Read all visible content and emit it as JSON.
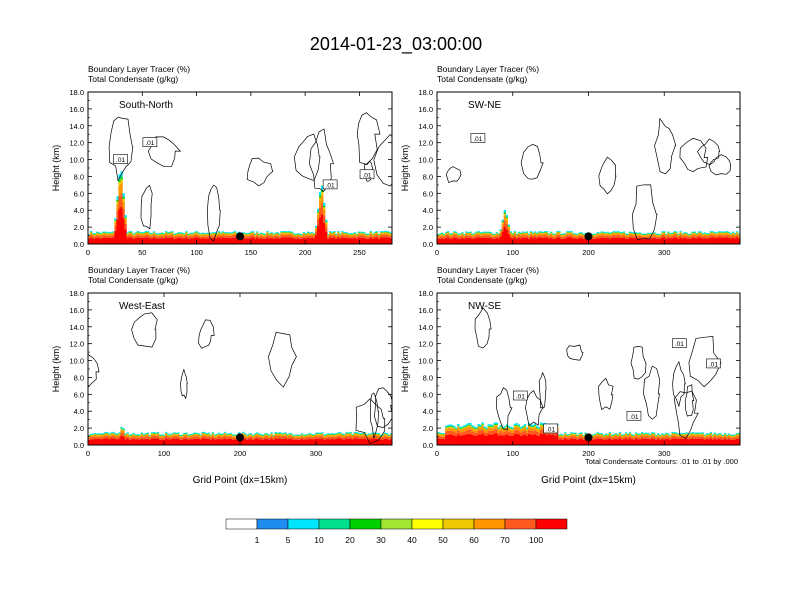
{
  "figure": {
    "title": "2014-01-23_03:00:00",
    "footnote": "Total Condensate Contours: .01 to .01 by .000"
  },
  "colorbar": {
    "labels": [
      "1",
      "5",
      "10",
      "20",
      "30",
      "40",
      "50",
      "60",
      "70",
      "100"
    ],
    "colors": [
      "#ffffff",
      "#1e8cf0",
      "#00e6ff",
      "#00e08c",
      "#00d200",
      "#a0e632",
      "#ffff00",
      "#f0c800",
      "#ff9600",
      "#ff5a1e",
      "#ff0000"
    ]
  },
  "contour_label": ".01",
  "chart_data": [
    {
      "type": "heatmap",
      "name": "South-North",
      "panel_label": "South-North",
      "header_line1": "Boundary Layer Tracer   (%)",
      "header_line2": "Total Condensate   (g/kg)",
      "ylabel": "Height (km)",
      "xlabel": "",
      "xlim": [
        0,
        280
      ],
      "ylim": [
        0,
        18
      ],
      "xticks": [
        0,
        50,
        100,
        150,
        200,
        250
      ],
      "yticks": [
        "0.0",
        "2.0",
        "4.0",
        "6.0",
        "8.0",
        "10.0",
        "12.0",
        "14.0",
        "16.0",
        "18.0"
      ],
      "marker_x": 140,
      "tracer_peaks": [
        {
          "x": 30,
          "top_km": 9.0
        },
        {
          "x": 215,
          "top_km": 7.0
        }
      ],
      "contour_labels_at": [
        {
          "x": 30,
          "y": 10.0
        },
        {
          "x": 57,
          "y": 12.0
        },
        {
          "x": 223,
          "y": 7.0
        },
        {
          "x": 257,
          "y": 8.2
        }
      ]
    },
    {
      "type": "heatmap",
      "name": "SW-NE",
      "panel_label": "SW-NE",
      "header_line1": "Boundary Layer Tracer   (%)",
      "header_line2": "Total Condensate   (g/kg)",
      "ylabel": "Height (km)",
      "xlabel": "",
      "xlim": [
        0,
        400
      ],
      "ylim": [
        0,
        18
      ],
      "xticks": [
        0,
        100,
        200,
        300
      ],
      "yticks": [
        "0.0",
        "2.0",
        "4.0",
        "6.0",
        "8.0",
        "10.0",
        "12.0",
        "14.0",
        "16.0",
        "18.0"
      ],
      "marker_x": 200,
      "tracer_peaks": [
        {
          "x": 90,
          "top_km": 4.0
        }
      ],
      "contour_labels_at": [
        {
          "x": 54,
          "y": 12.5
        }
      ]
    },
    {
      "type": "heatmap",
      "name": "West-East",
      "panel_label": "West-East",
      "header_line1": "Boundary Layer Tracer   (%)",
      "header_line2": "Total Condensate   (g/kg)",
      "ylabel": "Height (km)",
      "xlabel": "Grid Point (dx=15km)",
      "xlim": [
        0,
        400
      ],
      "ylim": [
        0,
        18
      ],
      "xticks": [
        0,
        100,
        200,
        300
      ],
      "yticks": [
        "0.0",
        "2.0",
        "4.0",
        "6.0",
        "8.0",
        "10.0",
        "12.0",
        "14.0",
        "16.0",
        "18.0"
      ],
      "marker_x": 200,
      "tracer_peaks": [
        {
          "x": 45,
          "top_km": 2.2
        }
      ],
      "contour_labels_at": []
    },
    {
      "type": "heatmap",
      "name": "NW-SE",
      "panel_label": "NW-SE",
      "header_line1": "Boundary Layer Tracer   (%)",
      "header_line2": "Total Condensate   (g/kg)",
      "ylabel": "Height (km)",
      "xlabel": "Grid Point (dx=15km)",
      "xlim": [
        0,
        400
      ],
      "ylim": [
        0,
        18
      ],
      "xticks": [
        0,
        100,
        200,
        300
      ],
      "yticks": [
        "0.0",
        "2.0",
        "4.0",
        "6.0",
        "8.0",
        "10.0",
        "12.0",
        "14.0",
        "16.0",
        "18.0"
      ],
      "marker_x": 200,
      "tracer_peaks": [
        {
          "x": 60,
          "top_km": 2.5
        }
      ],
      "contour_labels_at": [
        {
          "x": 110,
          "y": 5.8
        },
        {
          "x": 150,
          "y": 1.9
        },
        {
          "x": 260,
          "y": 3.4
        },
        {
          "x": 320,
          "y": 12.0
        },
        {
          "x": 365,
          "y": 9.6
        }
      ]
    }
  ]
}
